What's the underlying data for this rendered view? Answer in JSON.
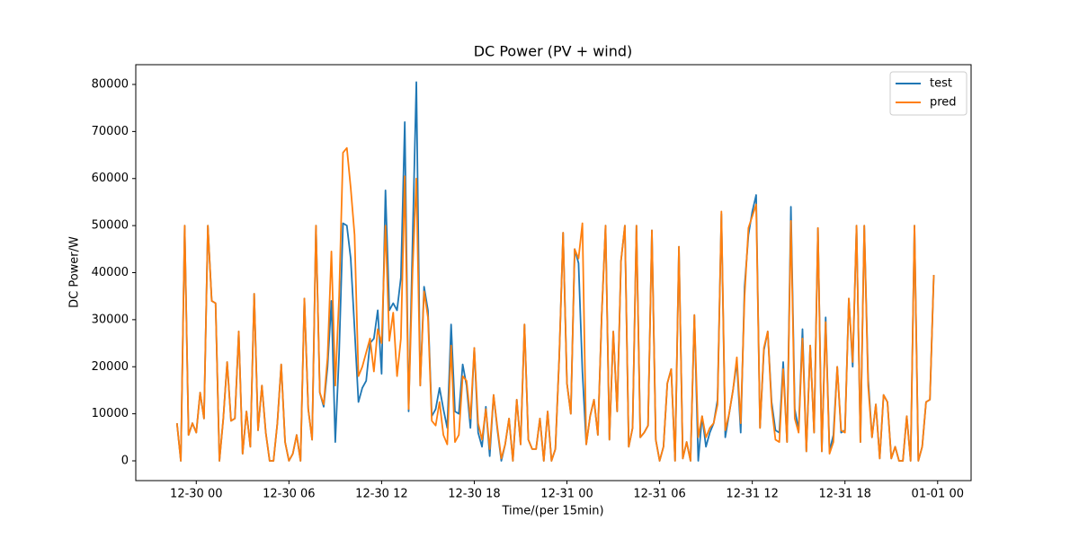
{
  "chart_data": {
    "type": "line",
    "title": "DC Power (PV + wind)",
    "xlabel": "Time/(per 15min)",
    "ylabel": "DC Power/W",
    "x": [
      "12-29 22:45",
      "12-29 23:00",
      "12-29 23:15",
      "12-29 23:30",
      "12-29 23:45",
      "12-30 00:00",
      "12-30 00:15",
      "12-30 00:30",
      "12-30 00:45",
      "12-30 01:00",
      "12-30 01:15",
      "12-30 01:30",
      "12-30 01:45",
      "12-30 02:00",
      "12-30 02:15",
      "12-30 02:30",
      "12-30 02:45",
      "12-30 03:00",
      "12-30 03:15",
      "12-30 03:30",
      "12-30 03:45",
      "12-30 04:00",
      "12-30 04:15",
      "12-30 04:30",
      "12-30 04:45",
      "12-30 05:00",
      "12-30 05:15",
      "12-30 05:30",
      "12-30 05:45",
      "12-30 06:00",
      "12-30 06:15",
      "12-30 06:30",
      "12-30 06:45",
      "12-30 07:00",
      "12-30 07:15",
      "12-30 07:30",
      "12-30 07:45",
      "12-30 08:00",
      "12-30 08:15",
      "12-30 08:30",
      "12-30 08:45",
      "12-30 09:00",
      "12-30 09:15",
      "12-30 09:30",
      "12-30 09:45",
      "12-30 10:00",
      "12-30 10:15",
      "12-30 10:30",
      "12-30 10:45",
      "12-30 11:00",
      "12-30 11:15",
      "12-30 11:30",
      "12-30 11:45",
      "12-30 12:00",
      "12-30 12:15",
      "12-30 12:30",
      "12-30 12:45",
      "12-30 13:00",
      "12-30 13:15",
      "12-30 13:30",
      "12-30 13:45",
      "12-30 14:00",
      "12-30 14:15",
      "12-30 14:30",
      "12-30 14:45",
      "12-30 15:00",
      "12-30 15:15",
      "12-30 15:30",
      "12-30 15:45",
      "12-30 16:00",
      "12-30 16:15",
      "12-30 16:30",
      "12-30 16:45",
      "12-30 17:00",
      "12-30 17:15",
      "12-30 17:30",
      "12-30 17:45",
      "12-30 18:00",
      "12-30 18:15",
      "12-30 18:30",
      "12-30 18:45",
      "12-30 19:00",
      "12-30 19:15",
      "12-30 19:30",
      "12-30 19:45",
      "12-30 20:00",
      "12-30 20:15",
      "12-30 20:30",
      "12-30 20:45",
      "12-30 21:00",
      "12-30 21:15",
      "12-30 21:30",
      "12-30 21:45",
      "12-30 22:00",
      "12-30 22:15",
      "12-30 22:30",
      "12-30 22:45",
      "12-30 23:00",
      "12-30 23:15",
      "12-30 23:30",
      "12-30 23:45",
      "12-31 00:00",
      "12-31 00:15",
      "12-31 00:30",
      "12-31 00:45",
      "12-31 01:00",
      "12-31 01:15",
      "12-31 01:30",
      "12-31 01:45",
      "12-31 02:00",
      "12-31 02:15",
      "12-31 02:30",
      "12-31 02:45",
      "12-31 03:00",
      "12-31 03:15",
      "12-31 03:30",
      "12-31 03:45",
      "12-31 04:00",
      "12-31 04:15",
      "12-31 04:30",
      "12-31 04:45",
      "12-31 05:00",
      "12-31 05:15",
      "12-31 05:30",
      "12-31 05:45",
      "12-31 06:00",
      "12-31 06:15",
      "12-31 06:30",
      "12-31 06:45",
      "12-31 07:00",
      "12-31 07:15",
      "12-31 07:30",
      "12-31 07:45",
      "12-31 08:00",
      "12-31 08:15",
      "12-31 08:30",
      "12-31 08:45",
      "12-31 09:00",
      "12-31 09:15",
      "12-31 09:30",
      "12-31 09:45",
      "12-31 10:00",
      "12-31 10:15",
      "12-31 10:30",
      "12-31 10:45",
      "12-31 11:00",
      "12-31 11:15",
      "12-31 11:30",
      "12-31 11:45",
      "12-31 12:00",
      "12-31 12:15",
      "12-31 12:30",
      "12-31 12:45",
      "12-31 13:00",
      "12-31 13:15",
      "12-31 13:30",
      "12-31 13:45",
      "12-31 14:00",
      "12-31 14:15",
      "12-31 14:30",
      "12-31 14:45",
      "12-31 15:00",
      "12-31 15:15",
      "12-31 15:30",
      "12-31 15:45",
      "12-31 16:00",
      "12-31 16:15",
      "12-31 16:30",
      "12-31 16:45",
      "12-31 17:00",
      "12-31 17:15",
      "12-31 17:30",
      "12-31 17:45",
      "12-31 18:00",
      "12-31 18:15",
      "12-31 18:30",
      "12-31 18:45",
      "12-31 19:00",
      "12-31 19:15",
      "12-31 19:30",
      "12-31 19:45",
      "12-31 20:00",
      "12-31 20:15",
      "12-31 20:30",
      "12-31 20:45",
      "12-31 21:00",
      "12-31 21:15",
      "12-31 21:30",
      "12-31 21:45",
      "12-31 22:00",
      "12-31 22:15",
      "12-31 22:30",
      "12-31 22:45",
      "12-31 23:00",
      "12-31 23:15",
      "12-31 23:30",
      "12-31 23:45"
    ],
    "series": [
      {
        "name": "test",
        "color": "#1f77b4",
        "values": [
          8000,
          0,
          50000,
          5500,
          8000,
          6000,
          14500,
          9000,
          50000,
          34000,
          33500,
          0,
          9000,
          21000,
          8500,
          9000,
          27500,
          1500,
          10500,
          3000,
          35500,
          6500,
          16000,
          6000,
          0,
          0,
          8000,
          20500,
          4000,
          0,
          1500,
          5500,
          0,
          34500,
          11000,
          4500,
          50000,
          14500,
          11500,
          20000,
          34000,
          4000,
          23000,
          50500,
          50000,
          43000,
          28000,
          12500,
          15500,
          17000,
          25000,
          26000,
          32000,
          18500,
          57500,
          32000,
          33500,
          32000,
          39000,
          72000,
          10500,
          46000,
          80500,
          16000,
          37000,
          32000,
          9500,
          11000,
          15500,
          11000,
          7000,
          29000,
          10500,
          10000,
          20500,
          16000,
          7000,
          24000,
          6000,
          3000,
          11500,
          1000,
          14000,
          6500,
          0,
          3500,
          9000,
          0,
          13000,
          3500,
          29000,
          4500,
          2500,
          2500,
          9000,
          0,
          10500,
          0,
          2500,
          22000,
          48500,
          16500,
          10000,
          45000,
          42000,
          19000,
          3500,
          9500,
          13000,
          5500,
          31000,
          50000,
          4500,
          27500,
          10500,
          42500,
          50000,
          3000,
          7000,
          50000,
          5000,
          6000,
          7500,
          49000,
          4500,
          0,
          3000,
          16500,
          19500,
          0,
          45500,
          500,
          4000,
          0,
          31000,
          0,
          9500,
          3000,
          6000,
          8000,
          13000,
          52500,
          5000,
          10000,
          15000,
          21000,
          6000,
          37000,
          48000,
          53000,
          56500,
          7000,
          23500,
          27500,
          12500,
          6500,
          6000,
          21000,
          4000,
          54000,
          11000,
          6500,
          28000,
          2000,
          24500,
          6000,
          49500,
          2000,
          30500,
          2000,
          5500,
          20000,
          6000,
          6500,
          34500,
          20000,
          50000,
          4000,
          50000,
          17500,
          5000,
          12000,
          500,
          14000,
          12500,
          500,
          3000,
          0,
          0,
          9500,
          0,
          50000,
          0,
          3000,
          12500,
          13000,
          39500
        ]
      },
      {
        "name": "pred",
        "color": "#ff7f0e",
        "values": [
          8000,
          0,
          50000,
          5500,
          8000,
          6000,
          14500,
          9000,
          50000,
          34000,
          33500,
          0,
          9000,
          21000,
          8500,
          9000,
          27500,
          1500,
          10500,
          3000,
          35500,
          6500,
          16000,
          6000,
          0,
          0,
          8000,
          20500,
          4000,
          0,
          1500,
          5500,
          0,
          34500,
          11000,
          4500,
          50000,
          14500,
          12000,
          22000,
          44500,
          16000,
          35000,
          65500,
          66500,
          58000,
          48000,
          18000,
          20000,
          23000,
          26000,
          19000,
          28000,
          25000,
          50000,
          25500,
          31500,
          18000,
          26000,
          60500,
          11000,
          40000,
          60000,
          16000,
          36000,
          30500,
          8500,
          7500,
          12500,
          5500,
          3500,
          24500,
          4000,
          5500,
          18000,
          17000,
          9000,
          24000,
          8000,
          4500,
          11000,
          2500,
          14000,
          7000,
          500,
          3500,
          9000,
          0,
          13000,
          3500,
          29000,
          4500,
          2500,
          2500,
          9000,
          0,
          10500,
          0,
          2500,
          22000,
          48500,
          16500,
          10000,
          45000,
          43000,
          50500,
          3500,
          9500,
          13000,
          5500,
          31000,
          50000,
          4500,
          27500,
          10500,
          42500,
          50000,
          3000,
          7000,
          50000,
          5000,
          6000,
          7500,
          49000,
          4500,
          0,
          3000,
          16500,
          19500,
          0,
          45500,
          500,
          4000,
          0,
          31000,
          5000,
          9500,
          5000,
          7000,
          8000,
          12000,
          53000,
          6500,
          10000,
          15000,
          22000,
          8000,
          35000,
          49500,
          52000,
          54500,
          7000,
          24000,
          27500,
          11500,
          4500,
          4000,
          19500,
          4000,
          51000,
          9000,
          6000,
          26000,
          2000,
          24500,
          6000,
          49500,
          2000,
          29500,
          1500,
          4000,
          20000,
          6500,
          6000,
          34500,
          21000,
          50000,
          4000,
          50000,
          16000,
          5000,
          12000,
          500,
          14000,
          12500,
          500,
          3000,
          0,
          0,
          9500,
          0,
          50000,
          0,
          3000,
          12500,
          13000,
          39500
        ]
      }
    ],
    "xlim": [
      "12-29 20:05",
      "01-01 02:10"
    ],
    "xticks": [
      {
        "value": "12-30 00:00",
        "label": "12-30 00"
      },
      {
        "value": "12-30 06:00",
        "label": "12-30 06"
      },
      {
        "value": "12-30 12:00",
        "label": "12-30 12"
      },
      {
        "value": "12-30 18:00",
        "label": "12-30 18"
      },
      {
        "value": "12-31 00:00",
        "label": "12-31 00"
      },
      {
        "value": "12-31 06:00",
        "label": "12-31 06"
      },
      {
        "value": "12-31 12:00",
        "label": "12-31 12"
      },
      {
        "value": "12-31 18:00",
        "label": "12-31 18"
      },
      {
        "value": "01-01 00:00",
        "label": "01-01 00"
      }
    ],
    "ylim": [
      -4200,
      84200
    ],
    "yticks": [
      0,
      10000,
      20000,
      30000,
      40000,
      50000,
      60000,
      70000,
      80000
    ],
    "legend": "upper right"
  }
}
